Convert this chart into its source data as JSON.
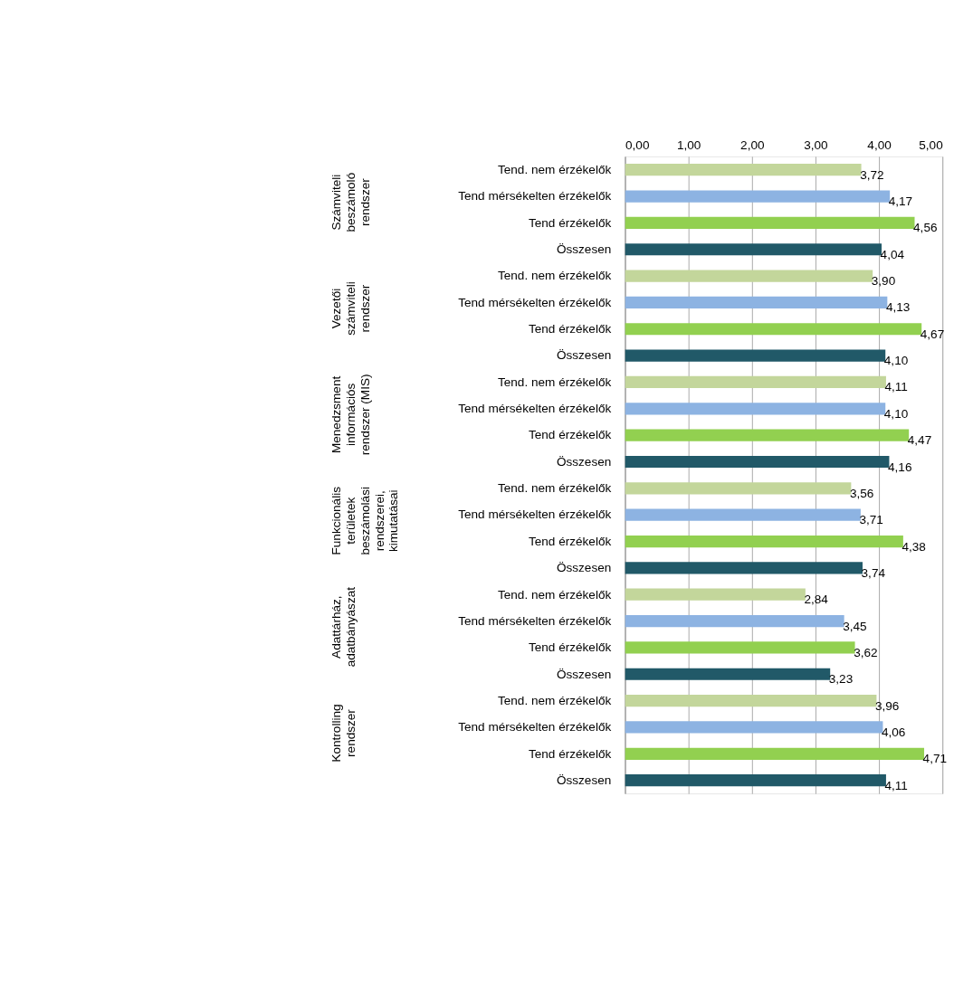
{
  "chart_data": {
    "type": "bar",
    "orientation": "horizontal",
    "categories": [
      "Tend. nem érzékelők",
      "Tend mérsékelten érzékelők",
      "Tend érzékelők",
      "Összesen",
      "Tend. nem érzékelők",
      "Tend mérsékelten érzékelők",
      "Tend érzékelők",
      "Összesen",
      "Tend. nem érzékelők",
      "Tend mérsékelten érzékelők",
      "Tend érzékelők",
      "Összesen",
      "Tend. nem érzékelők",
      "Tend mérsékelten érzékelők",
      "Tend érzékelők",
      "Összesen",
      "Tend. nem érzékelők",
      "Tend mérsékelten érzékelők",
      "Tend érzékelők",
      "Összesen",
      "Tend. nem érzékelők",
      "Tend mérsékelten érzékelők",
      "Tend érzékelők",
      "Összesen"
    ],
    "values": [
      3.72,
      4.17,
      4.56,
      4.04,
      3.9,
      4.13,
      4.67,
      4.1,
      4.11,
      4.1,
      4.47,
      4.16,
      3.56,
      3.71,
      4.38,
      3.74,
      2.84,
      3.45,
      3.62,
      3.23,
      3.96,
      4.06,
      4.71,
      4.11
    ],
    "value_labels": [
      "3,72",
      "4,17",
      "4,56",
      "4,04",
      "3,90",
      "4,13",
      "4,67",
      "4,10",
      "4,11",
      "4,10",
      "4,47",
      "4,16",
      "3,56",
      "3,71",
      "4,38",
      "3,74",
      "2,84",
      "3,45",
      "3,62",
      "3,23",
      "3,96",
      "4,06",
      "4,71",
      "4,11"
    ],
    "colors": [
      "#c3d69b",
      "#8db3e2",
      "#92d050",
      "#215968",
      "#c3d69b",
      "#8db3e2",
      "#92d050",
      "#215968",
      "#c3d69b",
      "#8db3e2",
      "#92d050",
      "#215968",
      "#c3d69b",
      "#8db3e2",
      "#92d050",
      "#215968",
      "#c3d69b",
      "#8db3e2",
      "#92d050",
      "#215968",
      "#c3d69b",
      "#8db3e2",
      "#92d050",
      "#215968"
    ],
    "annotations": [
      "Számviteli beszámoló rendszer",
      "Vezetői számviteli rendszer",
      "Menedzsment információs rendszer (MIS)",
      "Funkcionális területek beszámolási rendszerei, kimutatásai",
      "Adattárház, adatbányászat",
      "Kontrolling rendszer"
    ],
    "xlim": [
      0,
      5
    ],
    "xticks": [
      {
        "value": 0,
        "label": "0,00"
      },
      {
        "value": 1,
        "label": "1,00"
      },
      {
        "value": 2,
        "label": "2,00"
      },
      {
        "value": 3,
        "label": "3,00"
      },
      {
        "value": 4,
        "label": "4,00"
      },
      {
        "value": 5,
        "label": "5,00"
      }
    ],
    "grid": "x"
  }
}
